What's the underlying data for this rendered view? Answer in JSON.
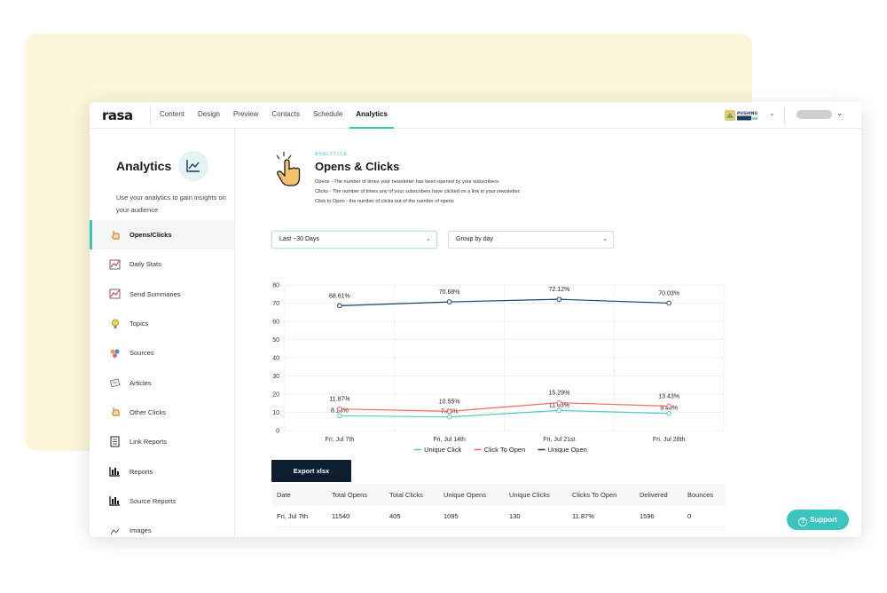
{
  "app": {
    "logo": "rasa"
  },
  "nav": {
    "tabs": [
      {
        "label": "Content"
      },
      {
        "label": "Design"
      },
      {
        "label": "Preview"
      },
      {
        "label": "Contacts"
      },
      {
        "label": "Schedule"
      },
      {
        "label": "Analytics",
        "active": true
      }
    ],
    "brand_logo_text": "PUSHING"
  },
  "sidebar": {
    "title": "Analytics",
    "description": "Use your analytics to gain insights on your audience",
    "items": [
      {
        "label": "Opens/Clicks",
        "icon": "pointing-hand-icon",
        "active": true
      },
      {
        "label": "Daily Stats",
        "icon": "line-chart-icon"
      },
      {
        "label": "Send Summaries",
        "icon": "line-chart-icon"
      },
      {
        "label": "Topics",
        "icon": "lightbulb-icon"
      },
      {
        "label": "Sources",
        "icon": "sources-icon"
      },
      {
        "label": "Articles",
        "icon": "articles-icon"
      },
      {
        "label": "Other Clicks",
        "icon": "pointing-hand-icon"
      },
      {
        "label": "Link Reports",
        "icon": "document-icon"
      },
      {
        "label": "Reports",
        "icon": "bar-chart-icon"
      },
      {
        "label": "Source Reports",
        "icon": "bar-chart-icon"
      },
      {
        "label": "Images",
        "icon": "image-icon"
      }
    ]
  },
  "main": {
    "eyebrow": "ANALYTICS",
    "title": "Opens & Clicks",
    "descriptions": [
      "Opens - The number of times your newsletter has been opened by your subscribers.",
      "Clicks - The number of times any of your subscribers have clicked on a link in your newsletter.",
      "Click to Open - the number of clicks out of the number of opens"
    ],
    "date_range_select": "Last ~30 Days",
    "group_select": "Group by day",
    "export_label": "Export xlsx"
  },
  "table": {
    "columns": [
      "Date",
      "Total Opens",
      "Total Clicks",
      "Unique Opens",
      "Unique Clicks",
      "Clicks To Open",
      "Delivered",
      "Bounces"
    ],
    "rows": [
      [
        "Fri, Jul 7th",
        "11540",
        "405",
        "1095",
        "130",
        "11.87%",
        "1596",
        "0"
      ]
    ]
  },
  "support": {
    "label": "Support"
  },
  "chart_data": {
    "type": "line",
    "categories": [
      "Fri, Jul 7th",
      "Fri, Jul 14th",
      "Fri, Jul 21st",
      "Fri, Jul 28th"
    ],
    "ylim": [
      0,
      80
    ],
    "yticks": [
      0,
      10,
      20,
      30,
      40,
      50,
      60,
      70,
      80
    ],
    "grid": true,
    "legend_position": "bottom",
    "series": [
      {
        "name": "Unique Click",
        "color": "#5bc8c0",
        "values": [
          8.15,
          7.46,
          11.03,
          9.4
        ],
        "labels": [
          "8.15%",
          "7.46%",
          "11.03%",
          "9.40%"
        ]
      },
      {
        "name": "Click To Open",
        "color": "#ef6b62",
        "values": [
          11.87,
          10.55,
          15.29,
          13.43
        ],
        "labels": [
          "11.87%",
          "10.55%",
          "15.29%",
          "13.43%"
        ]
      },
      {
        "name": "Unique Open",
        "color": "#17456b",
        "values": [
          68.61,
          70.68,
          72.12,
          70.03
        ],
        "labels": [
          "68.61%",
          "70.68%",
          "72.12%",
          "70.03%"
        ]
      }
    ]
  }
}
